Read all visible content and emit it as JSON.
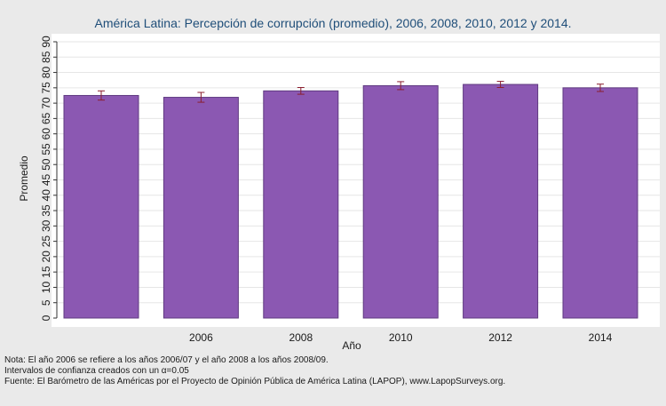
{
  "chart_data": {
    "type": "bar",
    "title": "América Latina: Percepción de corrupción (promedio), 2006, 2008, 2010, 2012 y 2014.",
    "xlabel": "Año",
    "ylabel": "Promedio",
    "ylim": [
      0,
      90
    ],
    "yticks": [
      0,
      5,
      10,
      15,
      20,
      25,
      30,
      35,
      40,
      45,
      50,
      55,
      60,
      65,
      70,
      75,
      80,
      85,
      90
    ],
    "grid": true,
    "categories": [
      "",
      "2006",
      "2008",
      "2010",
      "2012",
      "2014"
    ],
    "values": [
      72.5,
      71.9,
      74.0,
      75.7,
      76.1,
      75.0
    ],
    "ci_lower": [
      71.0,
      70.3,
      72.9,
      74.4,
      75.1,
      73.8
    ],
    "ci_upper": [
      74.0,
      73.5,
      75.1,
      77.0,
      77.1,
      76.2
    ],
    "bar_color": "#8b58b2",
    "bar_edge_color": "#5f3a80",
    "errorbar_color": "#8b1f2f",
    "background_color": "#eaeaea",
    "plot_background_color": "#ffffff"
  },
  "notes": [
    "Nota: El año 2006 se refiere a los años 2006/07 y el año 2008 a los años 2008/09.",
    "Intervalos de confianza creados con un α=0.05",
    "Fuente: El Barómetro de las Américas por el Proyecto de Opinión Pública de América Latina (LAPOP), www.LapopSurveys.org."
  ]
}
